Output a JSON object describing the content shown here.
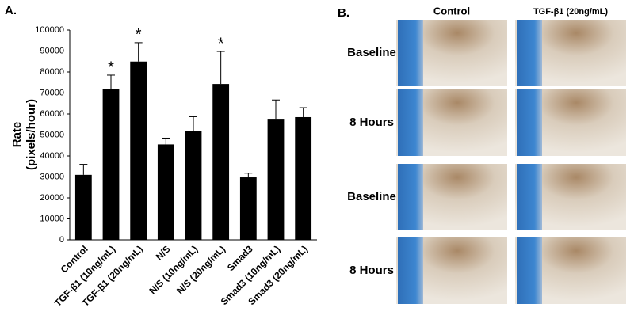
{
  "chart_data": {
    "type": "bar",
    "panel_label": "A.",
    "y_label": [
      "Rate",
      "(pixels/hour)"
    ],
    "categories": [
      "Control",
      "TGF-β1 (10ng/mL)",
      "TGF-β1 (20ng/mL)",
      "N/S",
      "N/S (10ng/mL)",
      "N/S (20ng/mL)",
      "Smad3",
      "Smad3 (10ng/mL)",
      "Smad3 (20ng/mL)"
    ],
    "values": [
      31000,
      72000,
      85000,
      45500,
      51700,
      74300,
      29800,
      57700,
      58500
    ],
    "errors": [
      5000,
      6500,
      9000,
      3000,
      7000,
      15500,
      2000,
      9000,
      4500
    ],
    "markers": [
      null,
      "*",
      "*",
      null,
      null,
      "*",
      null,
      null,
      null
    ],
    "color": "#000000",
    "ylim": [
      0,
      100000
    ],
    "yticks": [
      0,
      10000,
      20000,
      30000,
      40000,
      50000,
      60000,
      70000,
      80000,
      90000,
      100000
    ]
  },
  "panel_b": {
    "label": "B.",
    "columns": [
      "Control",
      "TGF-β1 (20ng/mL)"
    ],
    "rows": [
      "Baseline",
      "8 Hours",
      "Baseline",
      "8 Hours"
    ]
  }
}
